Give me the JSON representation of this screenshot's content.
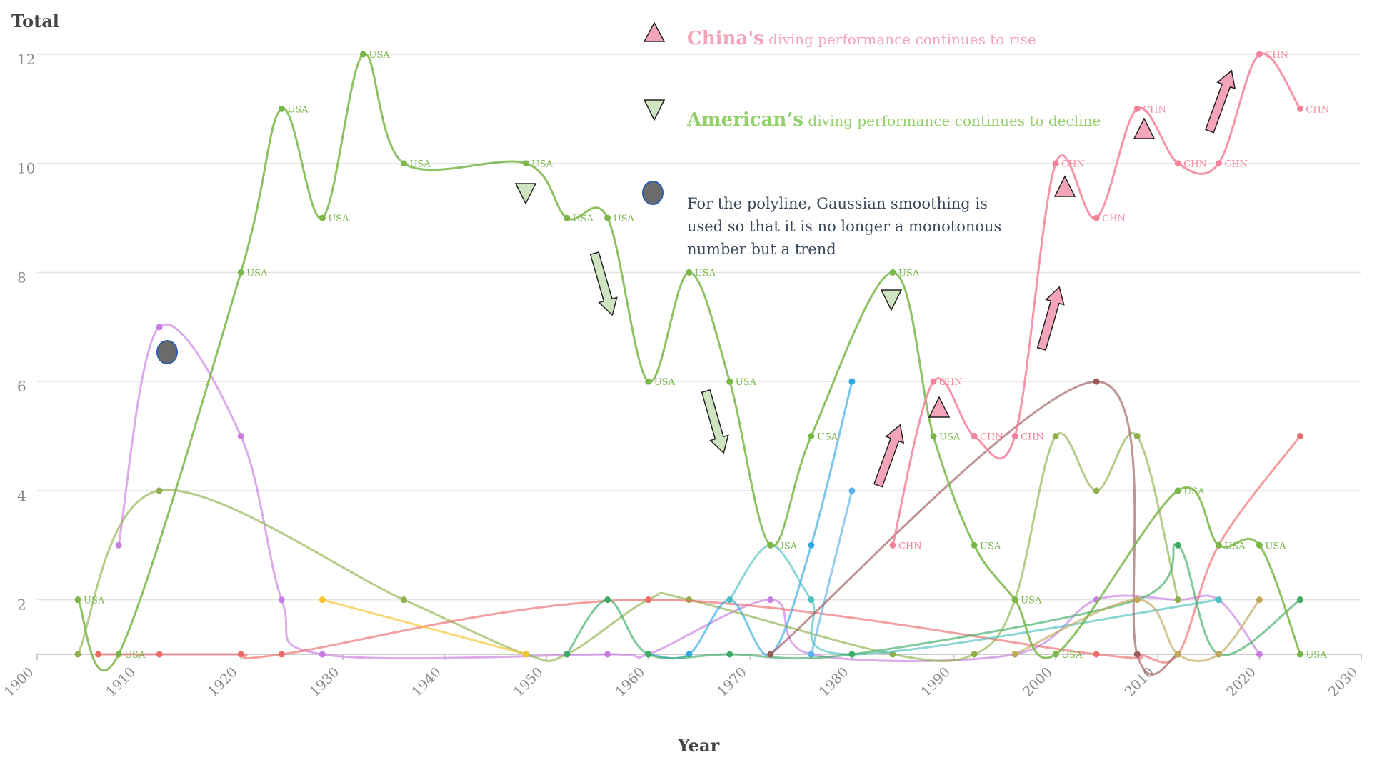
{
  "chart_data": {
    "type": "line",
    "title": "",
    "ylabel": "Total",
    "xlabel": "Year",
    "xlim": [
      1900,
      2030
    ],
    "ylim": [
      1,
      12
    ],
    "x_ticks": [
      "1900",
      "1910",
      "1920",
      "1930",
      "1940",
      "1950",
      "1960",
      "1970",
      "1980",
      "1990",
      "2000",
      "2010",
      "2020",
      "2030"
    ],
    "y_ticks": [
      "2",
      "4",
      "6",
      "8",
      "10",
      "12"
    ],
    "grid": true,
    "smoothing": "gaussian",
    "series": [
      {
        "color": "#7ab648",
        "label": "USA",
        "labeled": true,
        "points": [
          [
            1904,
            2
          ],
          [
            1908,
            1
          ],
          [
            1920,
            8
          ],
          [
            1924,
            11
          ],
          [
            1928,
            9
          ],
          [
            1932,
            12
          ],
          [
            1936,
            10
          ],
          [
            1948,
            10
          ],
          [
            1952,
            9
          ],
          [
            1956,
            9
          ],
          [
            1960,
            6
          ],
          [
            1964,
            8
          ],
          [
            1968,
            6
          ],
          [
            1972,
            3
          ],
          [
            1976,
            5
          ],
          [
            1984,
            8
          ],
          [
            1988,
            5
          ],
          [
            1992,
            3
          ],
          [
            1996,
            2
          ],
          [
            2000,
            1
          ],
          [
            2012,
            4
          ],
          [
            2016,
            3
          ],
          [
            2020,
            3
          ],
          [
            2024,
            1
          ]
        ]
      },
      {
        "color": "#f4839a",
        "label": "CHN",
        "labeled": true,
        "points": [
          [
            1984,
            3
          ],
          [
            1988,
            6
          ],
          [
            1992,
            5
          ],
          [
            1996,
            5
          ],
          [
            2000,
            10
          ],
          [
            2004,
            9
          ],
          [
            2008,
            11
          ],
          [
            2012,
            10
          ],
          [
            2016,
            10
          ],
          [
            2020,
            12
          ],
          [
            2024,
            11
          ]
        ]
      },
      {
        "color": "#c77ee0",
        "labeled": false,
        "points": [
          [
            1908,
            3
          ],
          [
            1912,
            7
          ],
          [
            1920,
            5
          ],
          [
            1924,
            2
          ],
          [
            1928,
            1
          ],
          [
            1956,
            1
          ],
          [
            1960,
            1
          ],
          [
            1972,
            2
          ],
          [
            1976,
            1
          ],
          [
            1996,
            1
          ],
          [
            2004,
            2
          ],
          [
            2012,
            2
          ],
          [
            2016,
            2
          ],
          [
            2020,
            1
          ]
        ]
      },
      {
        "color": "#8fb04a",
        "labeled": false,
        "points": [
          [
            1904,
            1
          ],
          [
            1912,
            4
          ],
          [
            1936,
            2
          ],
          [
            1948,
            1
          ],
          [
            1952,
            1
          ],
          [
            1960,
            2
          ],
          [
            1964,
            2
          ],
          [
            1984,
            1
          ],
          [
            1992,
            1
          ],
          [
            1996,
            2
          ],
          [
            2000,
            5
          ],
          [
            2004,
            4
          ],
          [
            2008,
            5
          ],
          [
            2012,
            2
          ]
        ]
      },
      {
        "color": "#ec6b6b",
        "labeled": false,
        "points": [
          [
            1906,
            1
          ],
          [
            1912,
            1
          ],
          [
            1920,
            1
          ],
          [
            1924,
            1
          ],
          [
            1960,
            2
          ],
          [
            2004,
            1
          ],
          [
            2008,
            1
          ],
          [
            2012,
            1
          ],
          [
            2016,
            3
          ],
          [
            2024,
            5
          ]
        ]
      },
      {
        "color": "#33a7e0",
        "labeled": false,
        "points": [
          [
            1960,
            1
          ],
          [
            1964,
            1
          ],
          [
            1968,
            2
          ],
          [
            1972,
            1
          ],
          [
            1976,
            3
          ],
          [
            1980,
            6
          ]
        ]
      },
      {
        "color": "#5ab0e8",
        "labeled": false,
        "points": [
          [
            1976,
            1
          ],
          [
            1980,
            4
          ]
        ]
      },
      {
        "color": "#4fc0c0",
        "labeled": false,
        "points": [
          [
            1968,
            2
          ],
          [
            1972,
            3
          ],
          [
            1976,
            2
          ],
          [
            1980,
            1
          ],
          [
            2016,
            2
          ]
        ]
      },
      {
        "color": "#3daa66",
        "labeled": false,
        "points": [
          [
            1952,
            1
          ],
          [
            1956,
            2
          ],
          [
            1960,
            1
          ],
          [
            1968,
            1
          ],
          [
            1980,
            1
          ],
          [
            2008,
            2
          ],
          [
            2012,
            3
          ],
          [
            2016,
            1
          ],
          [
            2024,
            2
          ]
        ]
      },
      {
        "color": "#9b5a5a",
        "labeled": false,
        "points": [
          [
            1972,
            1
          ],
          [
            2004,
            6
          ],
          [
            2008,
            1
          ],
          [
            2012,
            1
          ]
        ]
      },
      {
        "color": "#bfa85a",
        "labeled": false,
        "points": [
          [
            1996,
            1
          ],
          [
            2008,
            2
          ],
          [
            2012,
            1
          ],
          [
            2016,
            1
          ],
          [
            2020,
            2
          ]
        ]
      },
      {
        "color": "#f4c430",
        "labeled": false,
        "points": [
          [
            1928,
            2
          ],
          [
            1948,
            1
          ]
        ]
      }
    ],
    "annotations": [
      {
        "kind": "legend",
        "marker": "triangle-up",
        "color": "#f4a4b8",
        "text_bold": "China's",
        "text_rest": " diving performance continues to rise",
        "text_color": "#f4a4b8"
      },
      {
        "kind": "legend",
        "marker": "triangle-down",
        "color": "#cfe4c0",
        "text_bold": "American’s",
        "text_rest": " diving performance continues to decline",
        "text_color": "#93d06a"
      },
      {
        "kind": "legend",
        "marker": "ellipse",
        "color": "#6b6b6b",
        "text_bold": "",
        "text_rest": "For the polyline, Gaussian smoothing is used so that it is no longer a monotonous number but a trend",
        "text_color": "#3b4a5a"
      }
    ]
  }
}
